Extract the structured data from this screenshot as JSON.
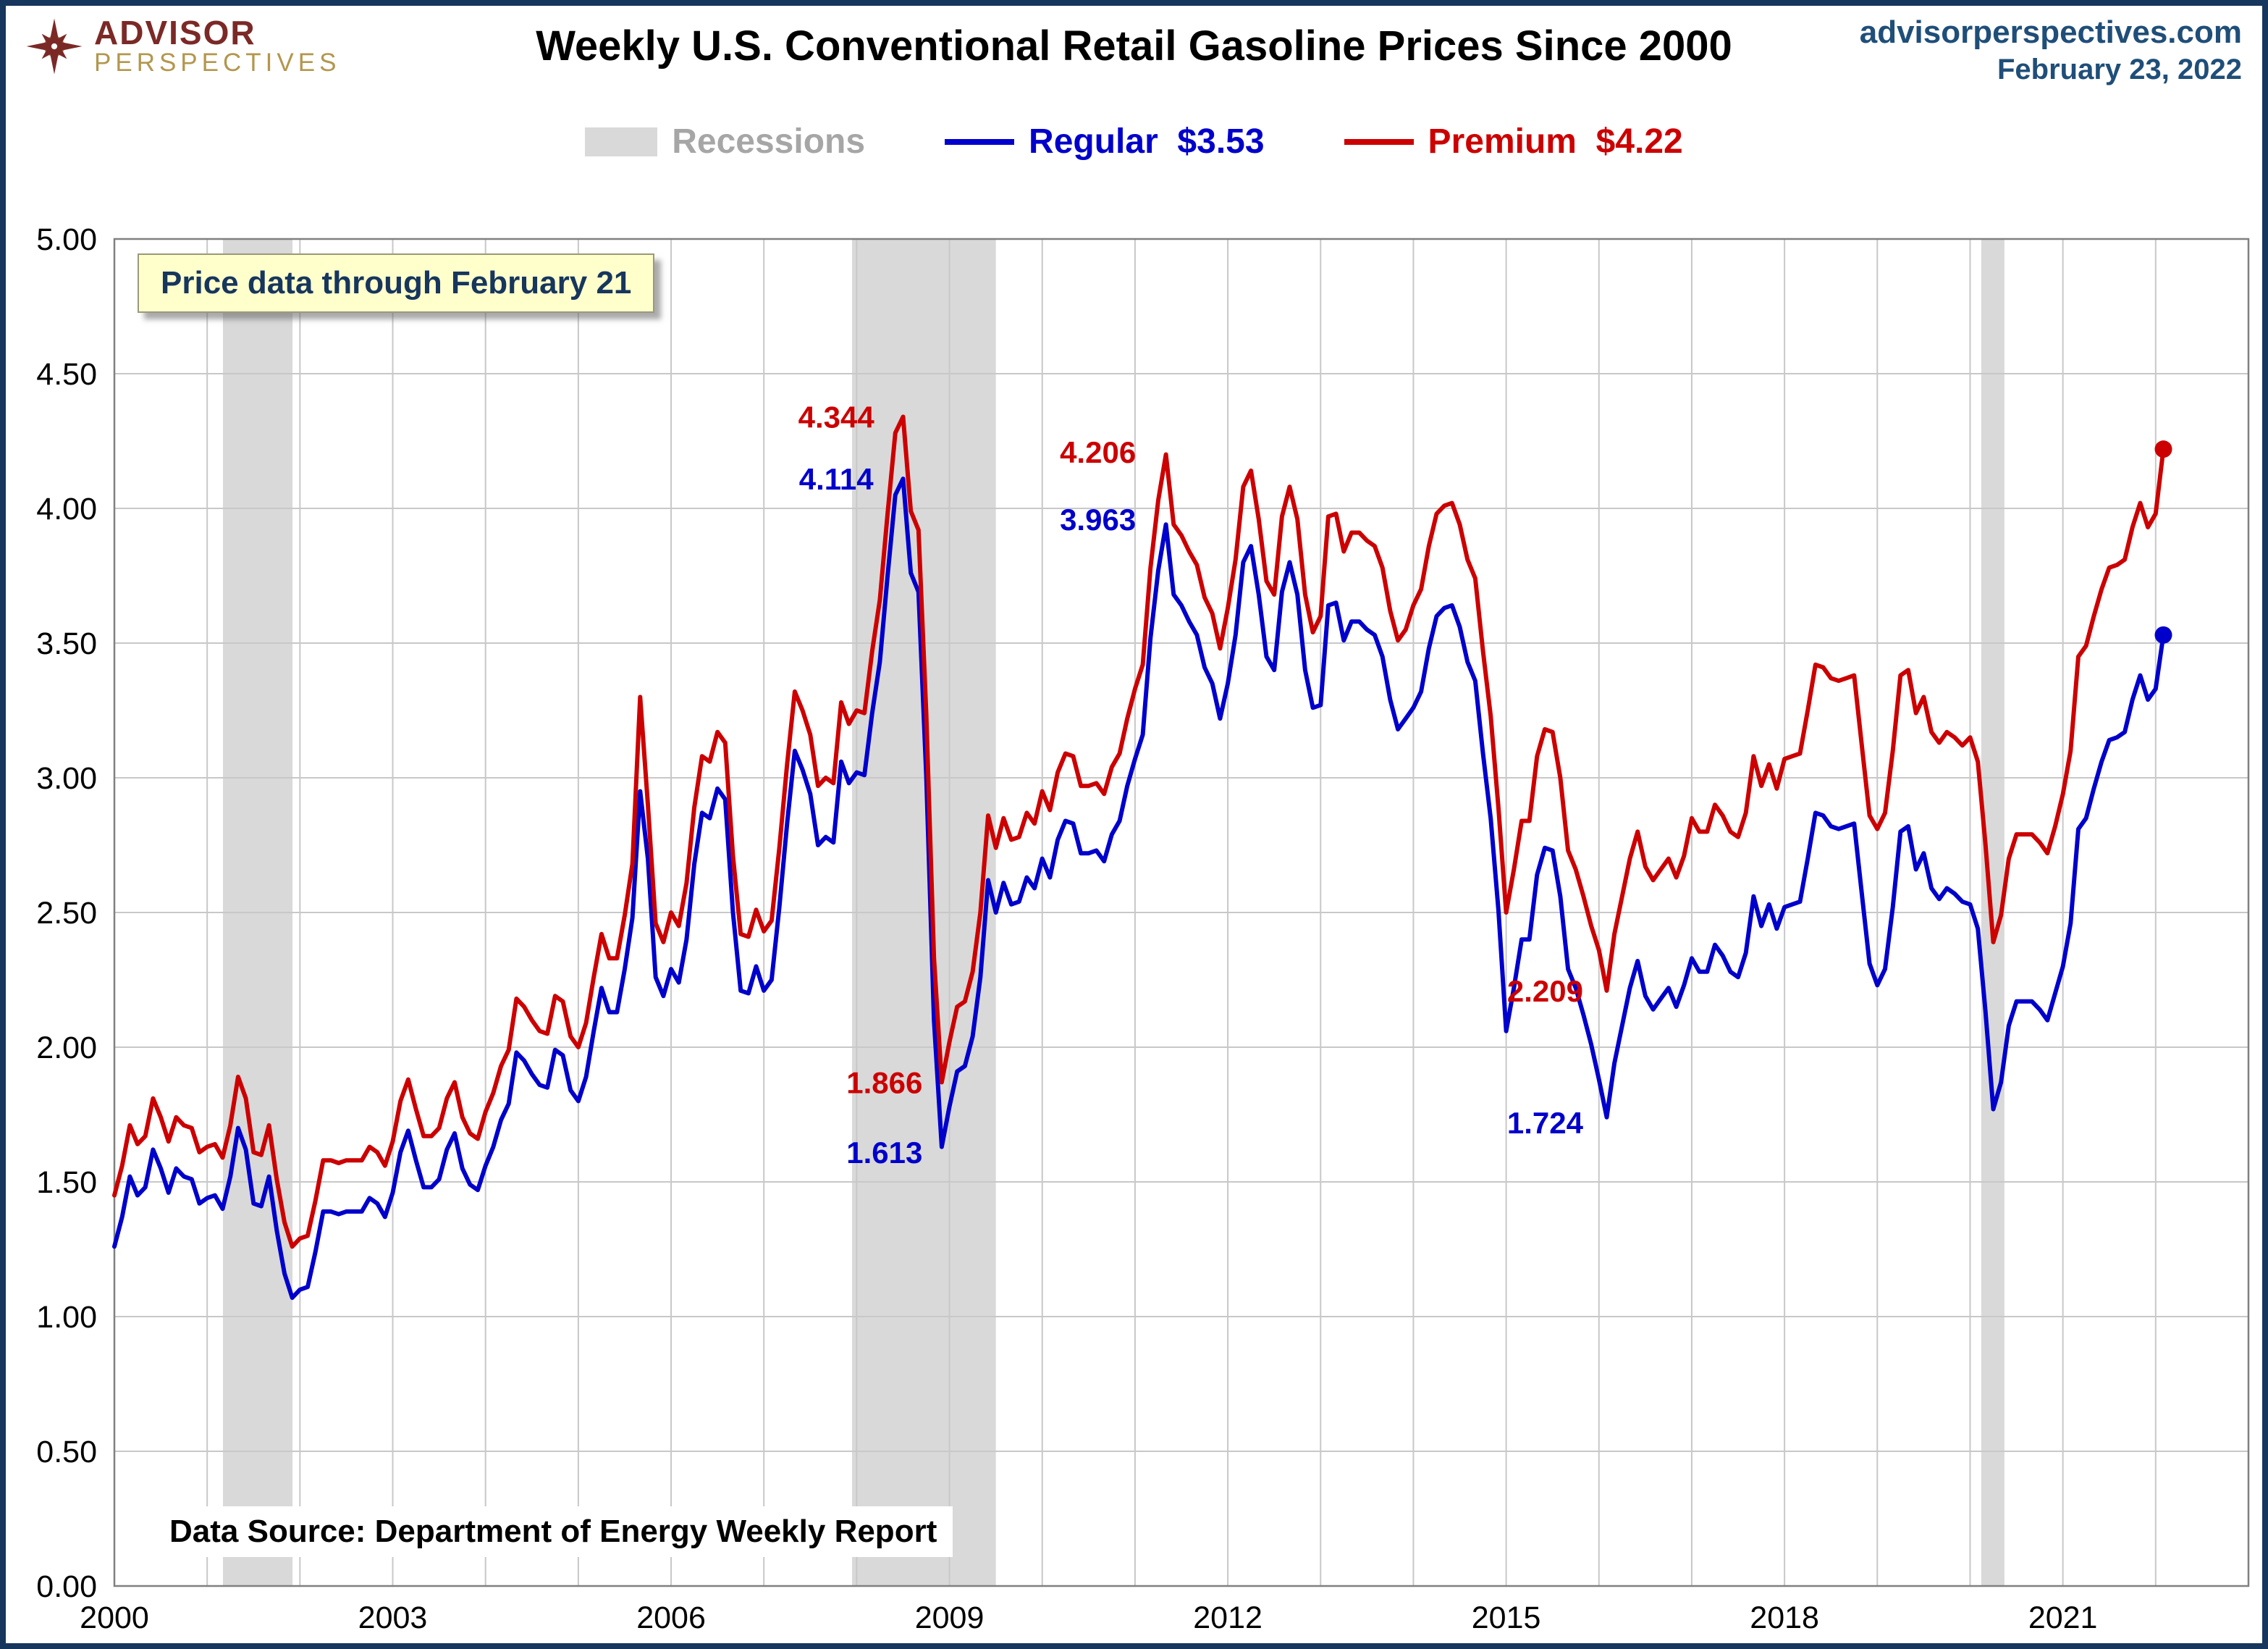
{
  "header": {
    "logo_line1": "ADVISOR",
    "logo_line2": "PERSPECTIVES",
    "title": "Weekly U.S. Conventional Retail Gasoline Prices Since 2000",
    "website": "advisorperspectives.com",
    "date": "February 23, 2022"
  },
  "legend": {
    "recessions": "Recessions",
    "regular": "Regular  $3.53",
    "premium": "Premium  $4.22"
  },
  "overlays": {
    "note": "Price data through February 21",
    "source": "Data Source: Department of Energy Weekly Report"
  },
  "colors": {
    "regular": "#0000CC",
    "premium": "#CC0000",
    "recession": "#D9D9D9",
    "grid": "#C8C8C8",
    "legend_gray": "#A6A6A6",
    "header_blue": "#1F4E79",
    "logo_maroon": "#7B2927",
    "logo_gold": "#B3974E",
    "note_bg": "#FFFFCC",
    "note_text": "#17365D"
  },
  "chart_data": {
    "type": "line",
    "title": "Weekly U.S. Conventional Retail Gasoline Prices Since 2000",
    "xlabel": "",
    "ylabel": "",
    "x_range": [
      2000,
      2023
    ],
    "y_range": [
      0,
      5
    ],
    "y_tick_step": 0.5,
    "x_ticks": [
      2000,
      2003,
      2006,
      2009,
      2012,
      2015,
      2018,
      2021
    ],
    "grid": true,
    "legend_position": "top",
    "start_year": 2000,
    "points_per_year": 12,
    "series": [
      {
        "name": "Regular",
        "color_key": "regular",
        "last_value": 3.53,
        "last_value_label": "$3.53",
        "values": [
          1.26,
          1.37,
          1.52,
          1.45,
          1.48,
          1.62,
          1.55,
          1.46,
          1.55,
          1.52,
          1.51,
          1.42,
          1.44,
          1.45,
          1.4,
          1.52,
          1.7,
          1.62,
          1.42,
          1.41,
          1.52,
          1.32,
          1.16,
          1.07,
          1.1,
          1.11,
          1.24,
          1.39,
          1.39,
          1.38,
          1.39,
          1.39,
          1.39,
          1.44,
          1.42,
          1.37,
          1.46,
          1.61,
          1.69,
          1.58,
          1.48,
          1.48,
          1.51,
          1.62,
          1.68,
          1.55,
          1.49,
          1.47,
          1.56,
          1.63,
          1.73,
          1.79,
          1.98,
          1.95,
          1.9,
          1.86,
          1.85,
          1.99,
          1.97,
          1.84,
          1.8,
          1.89,
          2.06,
          2.22,
          2.13,
          2.13,
          2.29,
          2.48,
          2.95,
          2.7,
          2.26,
          2.19,
          2.29,
          2.24,
          2.4,
          2.68,
          2.87,
          2.85,
          2.96,
          2.92,
          2.5,
          2.21,
          2.2,
          2.3,
          2.21,
          2.25,
          2.52,
          2.83,
          3.1,
          3.03,
          2.94,
          2.75,
          2.78,
          2.76,
          3.06,
          2.98,
          3.02,
          3.01,
          3.24,
          3.43,
          3.75,
          4.05,
          4.11,
          3.76,
          3.69,
          3.01,
          2.1,
          1.63,
          1.78,
          1.91,
          1.93,
          2.04,
          2.26,
          2.62,
          2.5,
          2.61,
          2.53,
          2.54,
          2.63,
          2.59,
          2.7,
          2.63,
          2.77,
          2.84,
          2.83,
          2.72,
          2.72,
          2.73,
          2.69,
          2.79,
          2.84,
          2.97,
          3.07,
          3.16,
          3.52,
          3.77,
          3.94,
          3.68,
          3.64,
          3.58,
          3.53,
          3.41,
          3.35,
          3.22,
          3.35,
          3.53,
          3.8,
          3.86,
          3.68,
          3.45,
          3.4,
          3.69,
          3.8,
          3.68,
          3.4,
          3.26,
          3.27,
          3.64,
          3.65,
          3.51,
          3.58,
          3.58,
          3.55,
          3.53,
          3.45,
          3.29,
          3.18,
          3.22,
          3.26,
          3.32,
          3.48,
          3.6,
          3.63,
          3.64,
          3.56,
          3.43,
          3.36,
          3.09,
          2.85,
          2.51,
          2.06,
          2.22,
          2.4,
          2.4,
          2.64,
          2.74,
          2.73,
          2.56,
          2.29,
          2.22,
          2.12,
          2.01,
          1.88,
          1.74,
          1.94,
          2.08,
          2.22,
          2.32,
          2.19,
          2.14,
          2.18,
          2.22,
          2.15,
          2.23,
          2.33,
          2.28,
          2.28,
          2.38,
          2.34,
          2.28,
          2.26,
          2.35,
          2.56,
          2.45,
          2.53,
          2.44,
          2.52,
          2.53,
          2.54,
          2.7,
          2.87,
          2.86,
          2.82,
          2.81,
          2.82,
          2.83,
          2.57,
          2.31,
          2.23,
          2.29,
          2.52,
          2.8,
          2.82,
          2.66,
          2.72,
          2.59,
          2.55,
          2.59,
          2.57,
          2.54,
          2.53,
          2.44,
          2.13,
          1.77,
          1.87,
          2.08,
          2.17,
          2.17,
          2.17,
          2.14,
          2.1,
          2.2,
          2.3,
          2.46,
          2.81,
          2.85,
          2.96,
          3.06,
          3.14,
          3.15,
          3.17,
          3.29,
          3.38,
          3.29,
          3.33,
          3.53
        ]
      },
      {
        "name": "Premium",
        "color_key": "premium",
        "last_value": 4.22,
        "last_value_label": "$4.22",
        "values": [
          1.45,
          1.56,
          1.71,
          1.64,
          1.67,
          1.81,
          1.74,
          1.65,
          1.74,
          1.71,
          1.7,
          1.61,
          1.63,
          1.64,
          1.59,
          1.71,
          1.89,
          1.81,
          1.61,
          1.6,
          1.71,
          1.51,
          1.35,
          1.26,
          1.29,
          1.3,
          1.43,
          1.58,
          1.58,
          1.57,
          1.58,
          1.58,
          1.58,
          1.63,
          1.61,
          1.56,
          1.65,
          1.8,
          1.88,
          1.77,
          1.67,
          1.67,
          1.7,
          1.81,
          1.87,
          1.74,
          1.68,
          1.66,
          1.76,
          1.83,
          1.93,
          1.99,
          2.18,
          2.15,
          2.1,
          2.06,
          2.05,
          2.19,
          2.17,
          2.04,
          2.0,
          2.09,
          2.26,
          2.42,
          2.33,
          2.33,
          2.49,
          2.68,
          3.3,
          2.9,
          2.46,
          2.39,
          2.5,
          2.45,
          2.61,
          2.89,
          3.08,
          3.06,
          3.17,
          3.13,
          2.71,
          2.42,
          2.41,
          2.51,
          2.43,
          2.47,
          2.74,
          3.05,
          3.32,
          3.25,
          3.16,
          2.97,
          3.0,
          2.98,
          3.28,
          3.2,
          3.25,
          3.24,
          3.47,
          3.66,
          3.98,
          4.28,
          4.34,
          3.99,
          3.92,
          3.24,
          2.33,
          1.87,
          2.02,
          2.15,
          2.17,
          2.28,
          2.5,
          2.86,
          2.74,
          2.85,
          2.77,
          2.78,
          2.87,
          2.83,
          2.95,
          2.88,
          3.02,
          3.09,
          3.08,
          2.97,
          2.97,
          2.98,
          2.94,
          3.04,
          3.09,
          3.22,
          3.33,
          3.42,
          3.78,
          4.03,
          4.2,
          3.94,
          3.9,
          3.84,
          3.79,
          3.67,
          3.61,
          3.48,
          3.63,
          3.81,
          4.08,
          4.14,
          3.96,
          3.73,
          3.68,
          3.97,
          4.08,
          3.96,
          3.68,
          3.54,
          3.6,
          3.97,
          3.98,
          3.84,
          3.91,
          3.91,
          3.88,
          3.86,
          3.78,
          3.62,
          3.51,
          3.55,
          3.64,
          3.7,
          3.86,
          3.98,
          4.01,
          4.02,
          3.94,
          3.81,
          3.74,
          3.47,
          3.23,
          2.89,
          2.5,
          2.66,
          2.84,
          2.84,
          3.08,
          3.18,
          3.17,
          3.0,
          2.73,
          2.66,
          2.56,
          2.45,
          2.36,
          2.21,
          2.42,
          2.56,
          2.7,
          2.8,
          2.67,
          2.62,
          2.66,
          2.7,
          2.63,
          2.71,
          2.85,
          2.8,
          2.8,
          2.9,
          2.86,
          2.8,
          2.78,
          2.87,
          3.08,
          2.97,
          3.05,
          2.96,
          3.07,
          3.08,
          3.09,
          3.25,
          3.42,
          3.41,
          3.37,
          3.36,
          3.37,
          3.38,
          3.12,
          2.86,
          2.81,
          2.87,
          3.1,
          3.38,
          3.4,
          3.24,
          3.3,
          3.17,
          3.13,
          3.17,
          3.15,
          3.12,
          3.15,
          3.06,
          2.75,
          2.39,
          2.49,
          2.7,
          2.79,
          2.79,
          2.79,
          2.76,
          2.72,
          2.82,
          2.94,
          3.1,
          3.45,
          3.49,
          3.6,
          3.7,
          3.78,
          3.79,
          3.81,
          3.93,
          4.02,
          3.93,
          3.98,
          4.22
        ]
      }
    ],
    "recessions": [
      {
        "start": 2001.17,
        "end": 2001.92
      },
      {
        "start": 2007.95,
        "end": 2009.5
      },
      {
        "start": 2020.12,
        "end": 2020.37
      }
    ],
    "annotations": [
      {
        "text": "4.344",
        "series": "premium",
        "x": 2007.78,
        "y": 4.34
      },
      {
        "text": "4.114",
        "series": "regular",
        "x": 2007.78,
        "y": 4.11
      },
      {
        "text": "4.206",
        "series": "premium",
        "x": 2010.6,
        "y": 4.21
      },
      {
        "text": "3.963",
        "series": "regular",
        "x": 2010.6,
        "y": 3.96
      },
      {
        "text": "1.866",
        "series": "premium",
        "x": 2008.3,
        "y": 1.87
      },
      {
        "text": "1.613",
        "series": "regular",
        "x": 2008.3,
        "y": 1.61
      },
      {
        "text": "2.209",
        "series": "premium",
        "x": 2015.42,
        "y": 2.21
      },
      {
        "text": "1.724",
        "series": "regular",
        "x": 2015.42,
        "y": 1.72
      }
    ]
  }
}
